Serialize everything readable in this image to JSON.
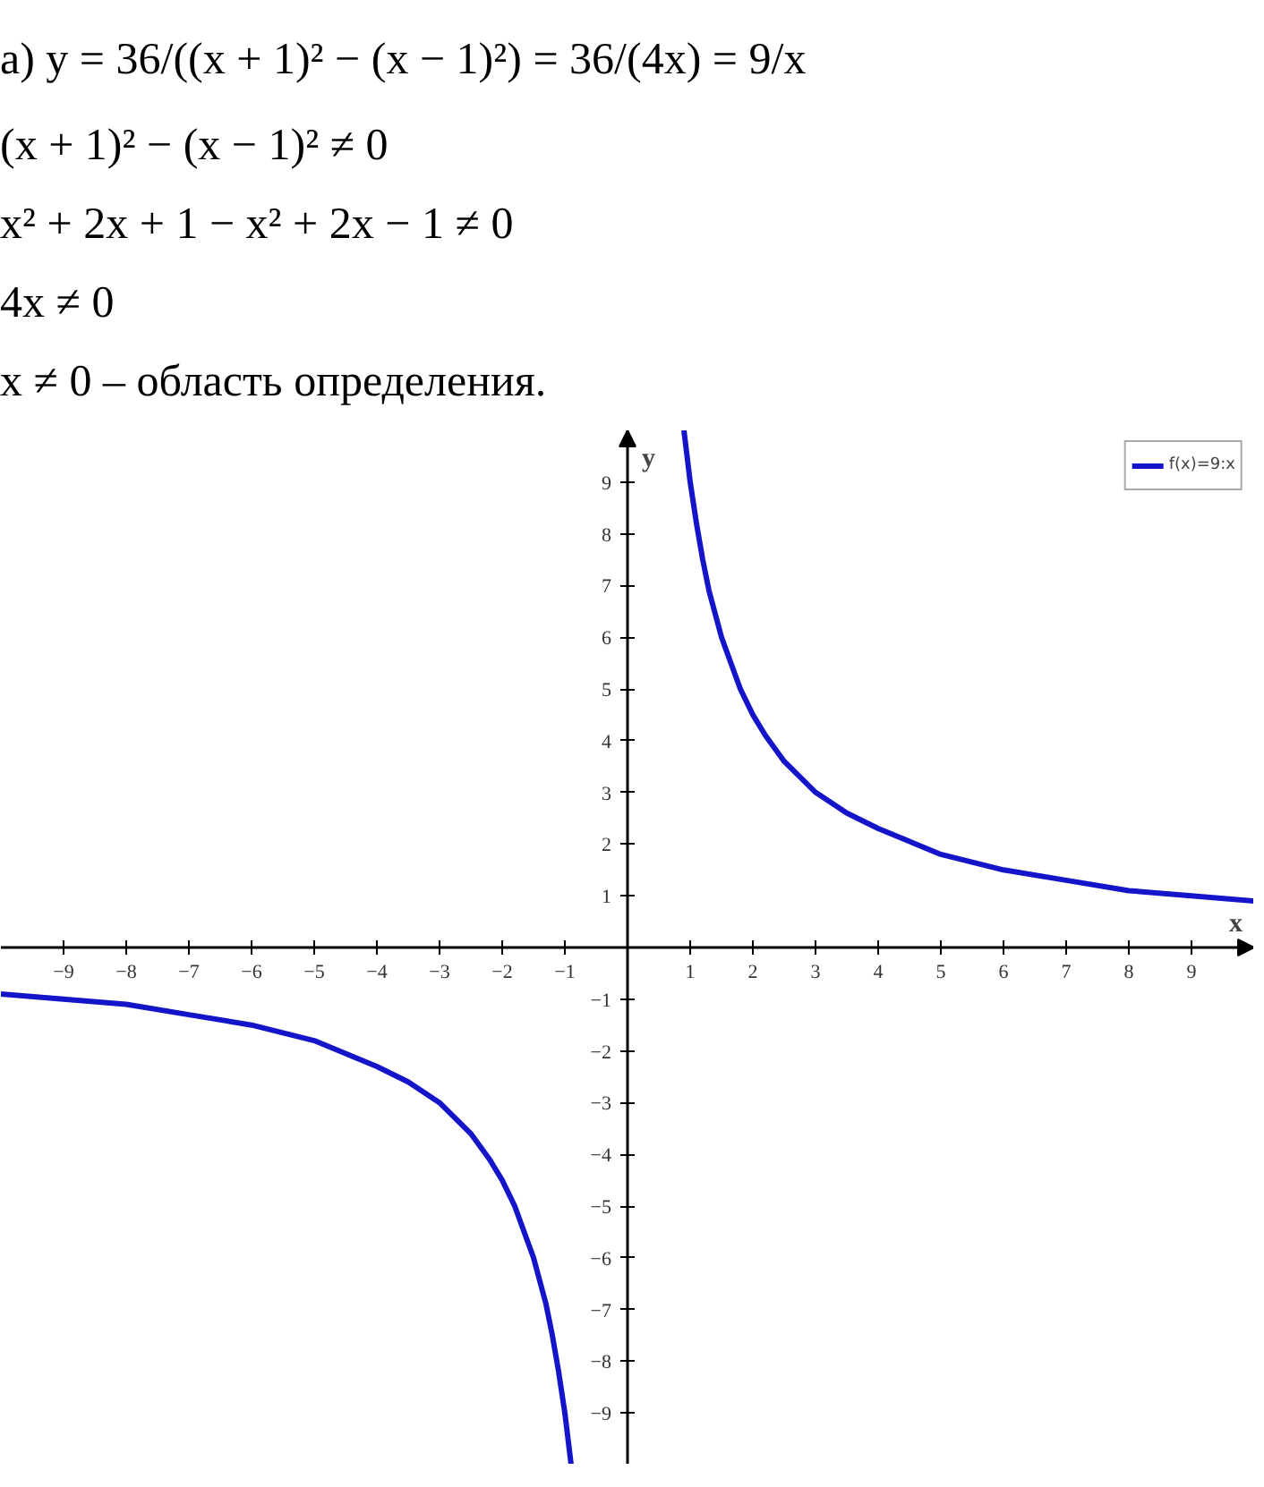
{
  "chart_data": {
    "type": "line",
    "annotations": [
      "а) y = 36/((x + 1)² − (x − 1)²) = 36/(4x) = 9/x",
      "(x + 1)² − (x − 1)² ≠ 0",
      "x² + 2x + 1 − x² + 2x − 1 ≠ 0",
      "4x ≠ 0",
      "x ≠ 0 – область определения."
    ],
    "xlabel": "x",
    "ylabel": "y",
    "xlim": [
      -10,
      10
    ],
    "ylim": [
      -10,
      10
    ],
    "xticks": [
      -9,
      -8,
      -7,
      -6,
      -5,
      -4,
      -3,
      -2,
      -1,
      1,
      2,
      3,
      4,
      5,
      6,
      7,
      8,
      9
    ],
    "yticks": [
      -9,
      -8,
      -7,
      -6,
      -5,
      -4,
      -3,
      -2,
      -1,
      1,
      2,
      3,
      4,
      5,
      6,
      7,
      8,
      9
    ],
    "series": [
      {
        "name": "f(x)=9:x",
        "color": "#1414c8",
        "x": [
          -10,
          -9,
          -8,
          -7,
          -6,
          -5,
          -4,
          -3.5,
          -3,
          -2.5,
          -2.2,
          -2,
          -1.8,
          -1.5,
          -1.3,
          -1.2,
          -1.1,
          -1,
          -0.9,
          0,
          0.9,
          1,
          1.1,
          1.2,
          1.3,
          1.5,
          1.8,
          2,
          2.2,
          2.5,
          3,
          3.5,
          4,
          5,
          6,
          7,
          8,
          9,
          10
        ],
        "values": [
          -0.9,
          -1,
          -1.1,
          -1.3,
          -1.5,
          -1.8,
          -2.3,
          -2.6,
          -3,
          -3.6,
          -4.1,
          -4.5,
          -5,
          -6,
          -6.9,
          -7.5,
          -8.2,
          -9,
          -10,
          null,
          10,
          9,
          8.2,
          7.5,
          6.9,
          6,
          5,
          4.5,
          4.1,
          3.6,
          3,
          2.6,
          2.3,
          1.8,
          1.5,
          1.3,
          1.1,
          1,
          0.9
        ]
      }
    ],
    "grid": false,
    "legend": "top right",
    "marker": "none",
    "line_style": "solid"
  }
}
